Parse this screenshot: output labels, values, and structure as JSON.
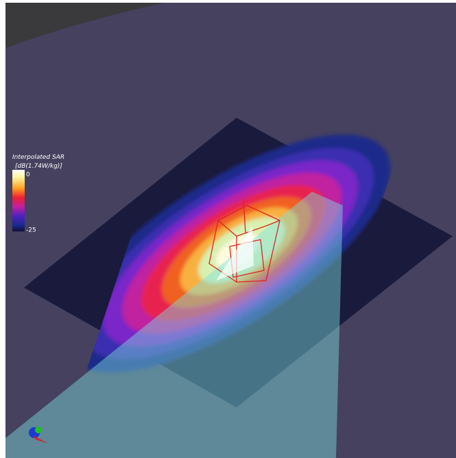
{
  "legend": {
    "title": "Interpolated SAR",
    "unit": "[dB(1.74W/kg)]",
    "max_label": "0",
    "min_label": "-25"
  }
}
